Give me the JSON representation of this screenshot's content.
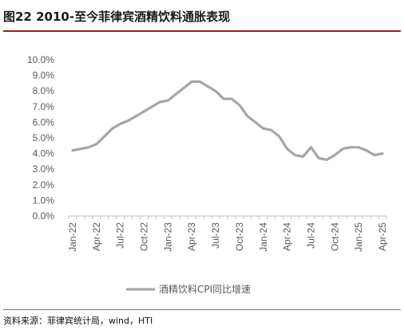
{
  "title": "图22 2010-至今菲律宾酒精饮料通胀表现",
  "source": "资料来源：菲律宾统计局，wind，HTI",
  "colors": {
    "line": "#a6a6a6",
    "axis": "#bfbfbf",
    "tick_text": "#595959",
    "title_rule": "#a61c1c"
  },
  "chart_data": {
    "type": "line",
    "title": "",
    "xlabel": "",
    "ylabel": "",
    "ylim": [
      0.0,
      10.0
    ],
    "y_ticks": [
      "0.0%",
      "1.0%",
      "2.0%",
      "3.0%",
      "4.0%",
      "5.0%",
      "6.0%",
      "7.0%",
      "8.0%",
      "9.0%",
      "10.0%"
    ],
    "x_tick_labels": [
      "Jan-22",
      "Apr-22",
      "Jul-22",
      "Oct-22",
      "Jan-23",
      "Apr-23",
      "Jul-23",
      "Oct-23",
      "Jan-24",
      "Apr-24",
      "Jul-24",
      "Oct-24",
      "Jan-25",
      "Apr-25"
    ],
    "grid": false,
    "legend_position": "bottom",
    "series": [
      {
        "name": "酒精饮料CPI同比增速",
        "x": [
          "Jan-22",
          "Feb-22",
          "Mar-22",
          "Apr-22",
          "May-22",
          "Jun-22",
          "Jul-22",
          "Aug-22",
          "Sep-22",
          "Oct-22",
          "Nov-22",
          "Dec-22",
          "Jan-23",
          "Feb-23",
          "Mar-23",
          "Apr-23",
          "May-23",
          "Jun-23",
          "Jul-23",
          "Aug-23",
          "Sep-23",
          "Oct-23",
          "Nov-23",
          "Dec-23",
          "Jan-24",
          "Feb-24",
          "Mar-24",
          "Apr-24",
          "May-24",
          "Jun-24",
          "Jul-24",
          "Aug-24",
          "Sep-24",
          "Oct-24",
          "Nov-24",
          "Dec-24",
          "Jan-25",
          "Feb-25",
          "Mar-25",
          "Apr-25"
        ],
        "values": [
          4.2,
          4.3,
          4.4,
          4.6,
          5.1,
          5.6,
          5.9,
          6.1,
          6.4,
          6.7,
          7.0,
          7.3,
          7.4,
          7.8,
          8.2,
          8.6,
          8.6,
          8.3,
          8.0,
          7.5,
          7.5,
          7.1,
          6.4,
          6.0,
          5.6,
          5.5,
          5.1,
          4.3,
          3.9,
          3.8,
          4.4,
          3.7,
          3.6,
          3.9,
          4.3,
          4.4,
          4.4,
          4.2,
          3.9,
          4.0
        ]
      }
    ]
  }
}
